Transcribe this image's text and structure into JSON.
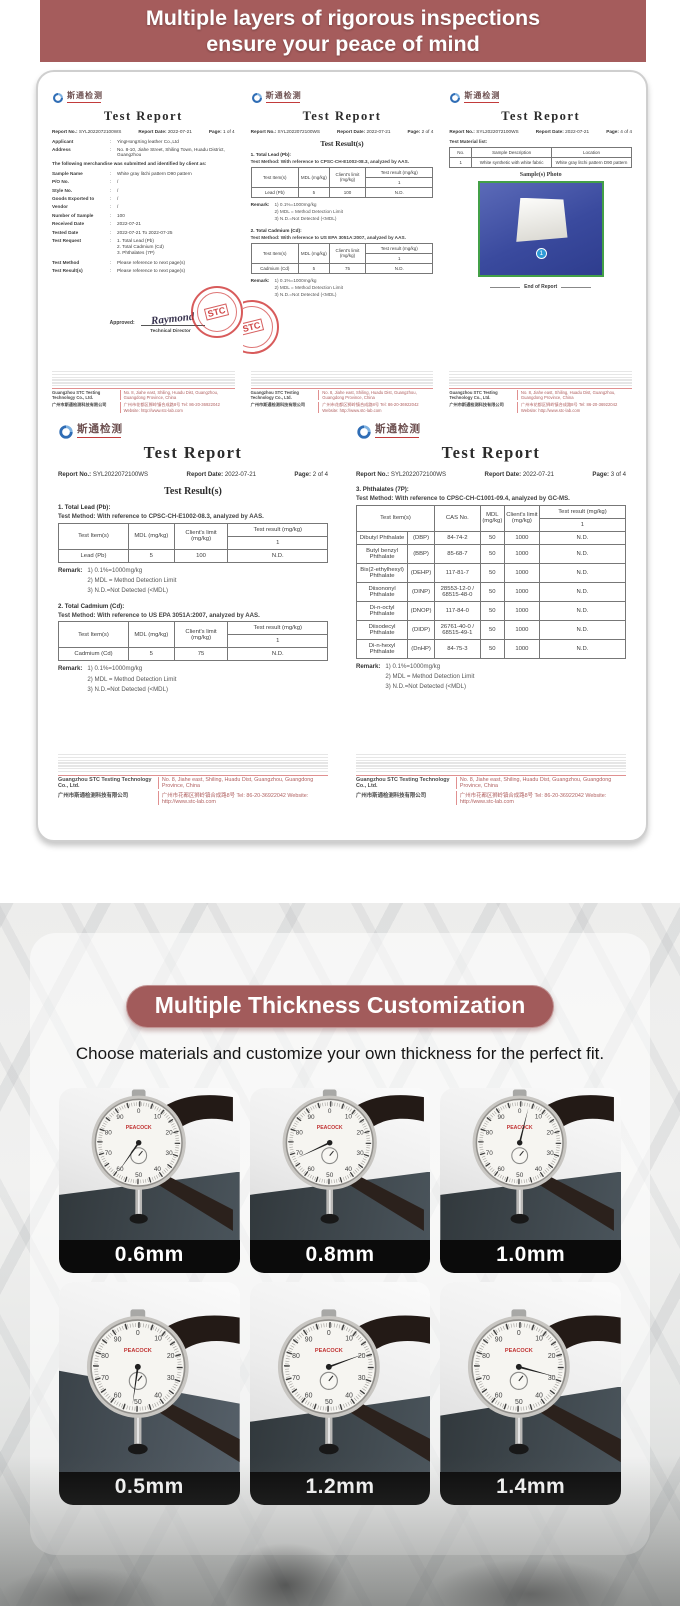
{
  "banner": {
    "line1": "Multiple layers of rigorous inspections",
    "line2": "ensure your peace of mind"
  },
  "report_common": {
    "logo_text": "斯通检测",
    "title": "Test Report",
    "report_no_label": "Report No.:",
    "report_no": "SYL2022072100WS",
    "date_label": "Report Date:",
    "report_date": "2022-07-21",
    "page_label": "Page:",
    "results_title": "Test Result(s)",
    "remark_label": "Remark:",
    "remarks": [
      "1)  0.1%=1000mg/kg",
      "2)  MDL = Method Detection Limit",
      "3)  N.D.=Not Detected (<MDL)"
    ],
    "th": {
      "item": "Test Item(s)",
      "mdl": "MDL (mg/kg)",
      "limit": "Client's limit (mg/kg)",
      "result": "Test result (mg/kg)",
      "result_sub": "1",
      "cas": "CAS No."
    },
    "footer": {
      "company_en": "Guangzhou STC Testing Technology Co., Ltd.",
      "addr_en": "No. 8, Jiahe east, Shiling, Huadu Dist, Guangzhou, Guangdong Province, China",
      "company_cn": "广州市斯通检测科技有限公司",
      "addr_cn": "广州市花都区狮岭镇合成路8号  Tel: 86-20-36922042  Website: http://www.stc-lab.com"
    }
  },
  "report1": {
    "page": "1 of 4",
    "rows": [
      {
        "label": "Applicant",
        "value": "YingHongXing leather Co.,Ltd"
      },
      {
        "label": "Address",
        "value": "No. 8-10, Jiahe Street, Shiling Town, Huadu District, Guangzhou"
      }
    ],
    "statement": "The following merchandise was submitted and identified by client as:",
    "rows2": [
      {
        "label": "Sample Name",
        "value": "White gray litchi pattern D90 pattern"
      },
      {
        "label": "P/O No.",
        "value": "/"
      },
      {
        "label": "Style No.",
        "value": "/"
      },
      {
        "label": "Goods Exported to",
        "value": "/"
      },
      {
        "label": "Vendor",
        "value": "/"
      },
      {
        "label": "Number of Sample",
        "value": "100"
      },
      {
        "label": "Received Date",
        "value": "2022-07-21"
      },
      {
        "label": "Tested Date",
        "value": "2022-07-21    To    2022-07-25"
      }
    ],
    "request_label": "Test Request",
    "request_items": [
      "1. Total Lead (Pb)",
      "2. Total Cadmium (Cd)",
      "3. Phthalates (7P)"
    ],
    "method_label": "Test Method",
    "method_value": "Please reference to next page(s)",
    "results_label": "Test Result(s)",
    "results_value": "Please reference to next page(s)",
    "approved_label": "Approved:",
    "signature": "Raymond",
    "signer_role": "Technical Director"
  },
  "report2": {
    "page": "2 of 4",
    "lead": {
      "heading": "1. Total Lead (Pb):",
      "method": "Test Method:  With reference to CPSC-CH-E1002-08.3, analyzed by AAS.",
      "item": "Lead (Pb)",
      "mdl": "5",
      "limit": "100",
      "result": "N.D."
    },
    "cadmium": {
      "heading": "2. Total Cadmium (Cd):",
      "method": "Test Method:  With reference to US EPA 3051A:2007, analyzed by AAS.",
      "item": "Cadmium (Cd)",
      "mdl": "5",
      "limit": "75",
      "result": "N.D."
    }
  },
  "report3": {
    "page": "4 of 4",
    "material_label": "Test Material list:",
    "th": {
      "no": "No.",
      "desc": "Sample Description",
      "loc": "Location"
    },
    "row": {
      "no": "1",
      "desc": "White synthetic with white fabric",
      "loc": "White gray litchi pattern D90 pattern"
    },
    "photo_label": "Sample(s) Photo",
    "badge": "1",
    "end_label": "End of Report"
  },
  "report5": {
    "page": "3 of 4",
    "heading": "3. Phthalates (7P):",
    "method": "Test Method:  With reference to CPSC-CH-C1001-09.4, analyzed by GC-MS.",
    "rows": [
      {
        "name": "Dibutyl Phthalate",
        "abbr": "(DBP)",
        "cas": "84-74-2",
        "mdl": "50",
        "limit": "1000",
        "result": "N.D."
      },
      {
        "name": "Butyl benzyl Phthalate",
        "abbr": "(BBP)",
        "cas": "85-68-7",
        "mdl": "50",
        "limit": "1000",
        "result": "N.D."
      },
      {
        "name": "Bis(2-ethylhexyl) Phthalate",
        "abbr": "(DEHP)",
        "cas": "117-81-7",
        "mdl": "50",
        "limit": "1000",
        "result": "N.D."
      },
      {
        "name": "Diisononyl Phthalate",
        "abbr": "(DINP)",
        "cas": "28553-12-0 / 68515-48-0",
        "mdl": "50",
        "limit": "1000",
        "result": "N.D."
      },
      {
        "name": "Di-n-octyl Phthalate",
        "abbr": "(DNOP)",
        "cas": "117-84-0",
        "mdl": "50",
        "limit": "1000",
        "result": "N.D."
      },
      {
        "name": "Diisodecyl Phthalate",
        "abbr": "(DIDP)",
        "cas": "26761-40-0 / 68515-49-1",
        "mdl": "50",
        "limit": "1000",
        "result": "N.D."
      },
      {
        "name": "Di-n-hexyl Phthalate",
        "abbr": "(DnHP)",
        "cas": "84-75-3",
        "mdl": "50",
        "limit": "1000",
        "result": "N.D."
      }
    ]
  },
  "thickness": {
    "title": "Multiple Thickness Customization",
    "subtitle": "Choose materials and customize your own thickness for the perfect fit.",
    "cards": [
      {
        "label": "0.6mm"
      },
      {
        "label": "0.8mm"
      },
      {
        "label": "1.0mm"
      },
      {
        "label": "0.5mm"
      },
      {
        "label": "1.2mm"
      },
      {
        "label": "1.4mm"
      }
    ]
  },
  "colors": {
    "banner": "#a55c5c",
    "pill": "#a25b5b",
    "label_bar": "#0b0b0b",
    "stamp_red": "#c62f2f",
    "photo_green_border": "#43a047",
    "photo_blue": "#3c4da3"
  }
}
